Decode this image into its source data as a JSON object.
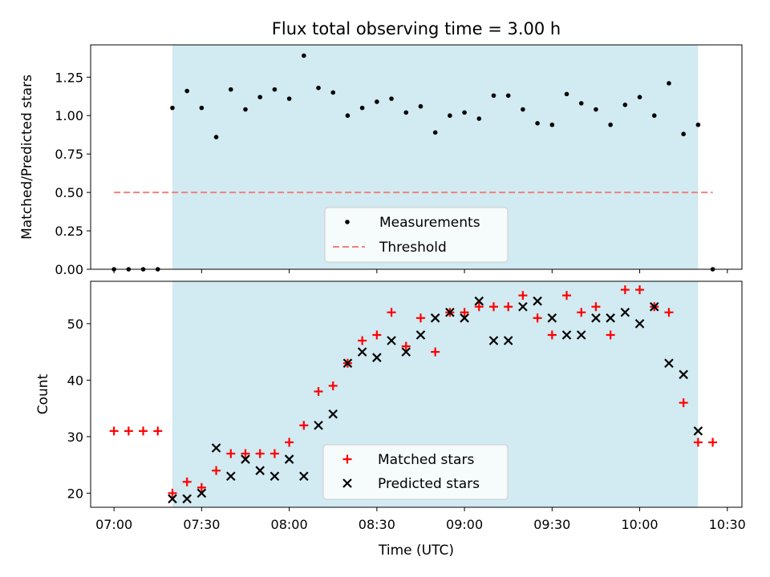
{
  "title": "Flux total observing time = 3.00 h",
  "colors": {
    "shade": "#add8e6",
    "measurement": "#000000",
    "threshold": "#f08080",
    "matched": "#ff0000",
    "predicted": "#000000"
  },
  "chart_data": [
    {
      "type": "scatter",
      "ylabel": "Matched/Predicted stars",
      "xlabel": "",
      "ylim": [
        0,
        1.46
      ],
      "yticks": [
        0.0,
        0.25,
        0.5,
        0.75,
        1.0,
        1.25
      ],
      "ytick_labels": [
        "0.00",
        "0.25",
        "0.50",
        "0.75",
        "1.00",
        "1.25"
      ],
      "shaded_interval": [
        "07:20",
        "10:20"
      ],
      "legend_position": "lower center",
      "threshold": {
        "name": "Threshold",
        "value": 0.5,
        "x_range": [
          "07:00",
          "10:25"
        ]
      },
      "series": [
        {
          "name": "Measurements",
          "x": [
            "07:00",
            "07:05",
            "07:10",
            "07:15",
            "07:20",
            "07:25",
            "07:30",
            "07:35",
            "07:40",
            "07:45",
            "07:50",
            "07:55",
            "08:00",
            "08:05",
            "08:10",
            "08:15",
            "08:20",
            "08:25",
            "08:30",
            "08:35",
            "08:40",
            "08:45",
            "08:50",
            "08:55",
            "09:00",
            "09:05",
            "09:10",
            "09:15",
            "09:20",
            "09:25",
            "09:30",
            "09:35",
            "09:40",
            "09:45",
            "09:50",
            "09:55",
            "10:00",
            "10:05",
            "10:10",
            "10:15",
            "10:20",
            "10:25"
          ],
          "values": [
            0.0,
            0.0,
            0.0,
            0.0,
            1.05,
            1.16,
            1.05,
            0.86,
            1.17,
            1.04,
            1.12,
            1.17,
            1.11,
            1.39,
            1.18,
            1.15,
            1.0,
            1.05,
            1.09,
            1.11,
            1.02,
            1.06,
            0.89,
            1.0,
            1.02,
            0.98,
            1.13,
            1.13,
            1.04,
            0.95,
            0.94,
            1.14,
            1.08,
            1.04,
            0.94,
            1.07,
            1.12,
            1.0,
            1.21,
            0.88,
            0.94,
            0.0
          ]
        }
      ]
    },
    {
      "type": "scatter",
      "ylabel": "Count",
      "xlabel": "Time (UTC)",
      "ylim": [
        17.5,
        57.5
      ],
      "yticks": [
        20,
        30,
        40,
        50
      ],
      "ytick_labels": [
        "20",
        "30",
        "40",
        "50"
      ],
      "xlim": [
        "06:52",
        "10:35"
      ],
      "xticks": [
        "07:00",
        "07:30",
        "08:00",
        "08:30",
        "09:00",
        "09:30",
        "10:00",
        "10:30"
      ],
      "shaded_interval": [
        "07:20",
        "10:20"
      ],
      "legend_position": "lower center",
      "series": [
        {
          "name": "Matched stars",
          "marker": "plus",
          "x": [
            "07:00",
            "07:05",
            "07:10",
            "07:15",
            "07:20",
            "07:25",
            "07:30",
            "07:35",
            "07:40",
            "07:45",
            "07:50",
            "07:55",
            "08:00",
            "08:05",
            "08:10",
            "08:15",
            "08:20",
            "08:25",
            "08:30",
            "08:35",
            "08:40",
            "08:45",
            "08:50",
            "08:55",
            "09:00",
            "09:05",
            "09:10",
            "09:15",
            "09:20",
            "09:25",
            "09:30",
            "09:35",
            "09:40",
            "09:45",
            "09:50",
            "09:55",
            "10:00",
            "10:05",
            "10:10",
            "10:15",
            "10:20",
            "10:25"
          ],
          "values": [
            31,
            31,
            31,
            31,
            20,
            22,
            21,
            24,
            27,
            27,
            27,
            27,
            29,
            32,
            38,
            39,
            43,
            47,
            48,
            52,
            46,
            51,
            45,
            52,
            52,
            53,
            53,
            53,
            55,
            51,
            48,
            55,
            52,
            53,
            48,
            56,
            56,
            53,
            52,
            36,
            29,
            29
          ]
        },
        {
          "name": "Predicted stars",
          "marker": "x",
          "x": [
            "07:20",
            "07:25",
            "07:30",
            "07:35",
            "07:40",
            "07:45",
            "07:50",
            "07:55",
            "08:00",
            "08:05",
            "08:10",
            "08:15",
            "08:20",
            "08:25",
            "08:30",
            "08:35",
            "08:40",
            "08:45",
            "08:50",
            "08:55",
            "09:00",
            "09:05",
            "09:10",
            "09:15",
            "09:20",
            "09:25",
            "09:30",
            "09:35",
            "09:40",
            "09:45",
            "09:50",
            "09:55",
            "10:00",
            "10:05",
            "10:10",
            "10:15",
            "10:20"
          ],
          "values": [
            19,
            19,
            20,
            28,
            23,
            26,
            24,
            23,
            26,
            23,
            32,
            34,
            43,
            45,
            44,
            47,
            45,
            48,
            51,
            52,
            51,
            54,
            47,
            47,
            53,
            54,
            51,
            48,
            48,
            51,
            51,
            52,
            50,
            53,
            43,
            41,
            31
          ]
        }
      ]
    }
  ]
}
